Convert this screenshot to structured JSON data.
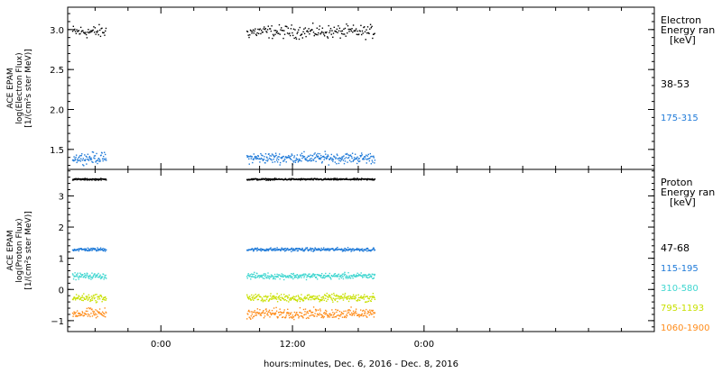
{
  "chart_data": [
    {
      "type": "scatter",
      "title": "",
      "ylabel": [
        "ACE EPAM",
        "log(Electron Flux)",
        "[1/(cm²s ster MeV)]"
      ],
      "ylim": [
        1.25,
        3.28
      ],
      "yticks": [
        1.5,
        2.0,
        2.5,
        3.0
      ],
      "yticklabels": [
        "1.5",
        "2.0",
        "2.5",
        "3.0"
      ],
      "legend": {
        "title": [
          "Electron",
          "Energy ran",
          "[keV]"
        ],
        "placement": "right"
      },
      "series": [
        {
          "name": "38-53",
          "color": "#000000",
          "base": 2.98,
          "spread": 0.06
        },
        {
          "name": "175-315",
          "color": "#1f7ad8",
          "base": 1.4,
          "spread": 0.05
        }
      ]
    },
    {
      "type": "scatter",
      "title": "",
      "ylabel": [
        "ACE EPAM",
        "log(Proton Flux)",
        "[1/(cm²s ster MeV)]"
      ],
      "ylim": [
        -1.35,
        3.85
      ],
      "yticks": [
        -1,
        0,
        1,
        2,
        3
      ],
      "yticklabels": [
        "−1",
        "0",
        "1",
        "2",
        "3"
      ],
      "legend": {
        "title": [
          "Proton",
          "Energy ran",
          "[keV]"
        ],
        "placement": "right"
      },
      "series": [
        {
          "name": "47-68",
          "color": "#000000",
          "base": 3.55,
          "spread": 0.02
        },
        {
          "name": "115-195",
          "color": "#1f7ad8",
          "base": 1.3,
          "spread": 0.04
        },
        {
          "name": "310-580",
          "color": "#3fd6d0",
          "base": 0.45,
          "spread": 0.07
        },
        {
          "name": "795-1193",
          "color": "#c8e000",
          "base": -0.25,
          "spread": 0.09
        },
        {
          "name": "1060-1900",
          "color": "#ff8c1a",
          "base": -0.75,
          "spread": 0.12
        }
      ]
    }
  ],
  "time_axis": {
    "xlabel": "hours:minutes, Dec.  6, 2016 - Dec.  8, 2016",
    "range_hours": [
      -8.5,
      45.0
    ],
    "tick_hours": [
      0,
      12,
      24
    ],
    "tick_labels": [
      "0:00",
      "12:00",
      "0:00"
    ],
    "minor_step_hours": 3,
    "data_segments_hours": [
      [
        -8.1,
        -5.0
      ],
      [
        7.8,
        19.5
      ]
    ]
  }
}
